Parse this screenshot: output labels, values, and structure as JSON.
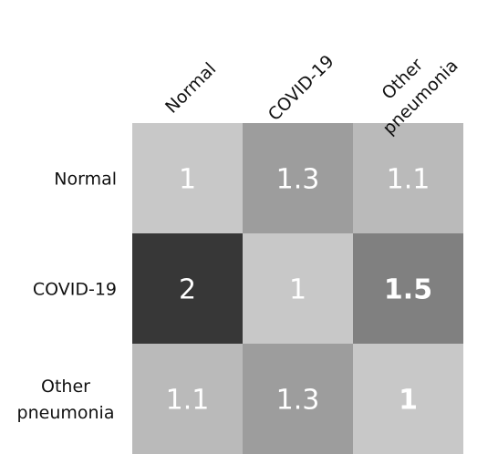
{
  "chart_data": {
    "type": "heatmap",
    "columns": [
      "Normal",
      "COVID-19",
      "Other pneumonia"
    ],
    "rows": [
      "Normal",
      "COVID-19",
      "Other pneumonia"
    ],
    "values": [
      [
        1,
        1.3,
        1.1
      ],
      [
        2,
        1,
        1.5
      ],
      [
        1.1,
        1.3,
        1
      ]
    ],
    "value_labels": [
      [
        "1",
        "1.3",
        "1.1"
      ],
      [
        "2",
        "1",
        "1.5"
      ],
      [
        "1.1",
        "1.3",
        "1"
      ]
    ],
    "bold_cells": [
      [
        1,
        2
      ],
      [
        2,
        2
      ]
    ],
    "colors": {
      "low": "#c8c8c8",
      "high": "#373737",
      "text": "#ffffff",
      "label": "#111111"
    }
  }
}
